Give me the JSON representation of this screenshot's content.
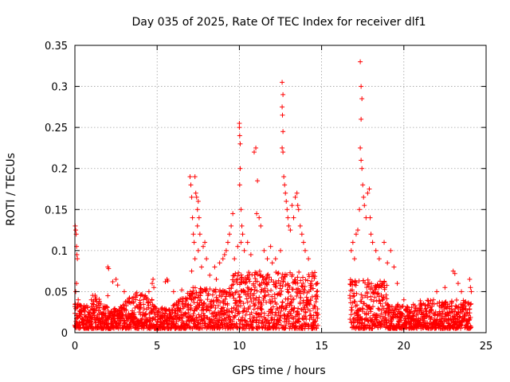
{
  "chart_data": {
    "type": "scatter",
    "title": "Day 035 of 2025, Rate Of TEC Index for receiver dlf1",
    "xlabel": "GPS time / hours",
    "ylabel": "ROTI / TECUs",
    "xlim": [
      0,
      25
    ],
    "ylim": [
      0,
      0.35
    ],
    "x_ticks": [
      0,
      5,
      10,
      15,
      20,
      25
    ],
    "y_ticks": [
      0,
      0.05,
      0.1,
      0.15,
      0.2,
      0.25,
      0.3,
      0.35
    ],
    "x_tick_labels": [
      "0",
      "5",
      "10",
      "15",
      "20",
      "25"
    ],
    "y_tick_labels": [
      "0",
      "0.05",
      "0.1",
      "0.15",
      "0.2",
      "0.25",
      "0.3",
      "0.35"
    ],
    "grid": true,
    "marker": "+",
    "marker_color": "#ff0000",
    "data_gap_hours": [
      14.8,
      16.7
    ],
    "series": [
      {
        "name": "ROTI",
        "points": [
          [
            0.02,
            0.13
          ],
          [
            0.05,
            0.125
          ],
          [
            0.08,
            0.12
          ],
          [
            0.1,
            0.105
          ],
          [
            0.12,
            0.095
          ],
          [
            0.15,
            0.09
          ],
          [
            0.1,
            0.06
          ],
          [
            0.05,
            0.05
          ],
          [
            0.2,
            0.04
          ],
          [
            0.03,
            0.035
          ],
          [
            1.0,
            0.04
          ],
          [
            1.5,
            0.038
          ],
          [
            2.0,
            0.045
          ],
          [
            2.0,
            0.08
          ],
          [
            2.05,
            0.078
          ],
          [
            2.3,
            0.062
          ],
          [
            2.5,
            0.065
          ],
          [
            2.6,
            0.058
          ],
          [
            3.0,
            0.05
          ],
          [
            3.5,
            0.042
          ],
          [
            4.0,
            0.045
          ],
          [
            4.5,
            0.05
          ],
          [
            4.7,
            0.06
          ],
          [
            4.75,
            0.065
          ],
          [
            4.8,
            0.055
          ],
          [
            5.5,
            0.062
          ],
          [
            5.6,
            0.065
          ],
          [
            5.65,
            0.063
          ],
          [
            6.0,
            0.05
          ],
          [
            6.5,
            0.052
          ],
          [
            7.0,
            0.19
          ],
          [
            7.05,
            0.18
          ],
          [
            7.1,
            0.165
          ],
          [
            7.15,
            0.14
          ],
          [
            7.2,
            0.12
          ],
          [
            7.25,
            0.11
          ],
          [
            7.3,
            0.09
          ],
          [
            7.1,
            0.075
          ],
          [
            7.3,
            0.19
          ],
          [
            7.35,
            0.17
          ],
          [
            7.4,
            0.165
          ],
          [
            7.45,
            0.15
          ],
          [
            7.5,
            0.16
          ],
          [
            7.55,
            0.14
          ],
          [
            7.45,
            0.13
          ],
          [
            7.6,
            0.12
          ],
          [
            7.5,
            0.1
          ],
          [
            7.7,
            0.08
          ],
          [
            7.8,
            0.105
          ],
          [
            7.9,
            0.11
          ],
          [
            8.0,
            0.09
          ],
          [
            8.2,
            0.07
          ],
          [
            8.5,
            0.08
          ],
          [
            8.6,
            0.065
          ],
          [
            8.8,
            0.085
          ],
          [
            9.0,
            0.09
          ],
          [
            9.1,
            0.095
          ],
          [
            9.2,
            0.1
          ],
          [
            9.3,
            0.11
          ],
          [
            9.4,
            0.12
          ],
          [
            9.5,
            0.13
          ],
          [
            9.6,
            0.145
          ],
          [
            9.7,
            0.09
          ],
          [
            9.9,
            0.105
          ],
          [
            10.0,
            0.255
          ],
          [
            10.0,
            0.25
          ],
          [
            10.02,
            0.24
          ],
          [
            10.05,
            0.23
          ],
          [
            10.05,
            0.2
          ],
          [
            10.02,
            0.18
          ],
          [
            10.1,
            0.15
          ],
          [
            10.15,
            0.13
          ],
          [
            10.2,
            0.12
          ],
          [
            10.1,
            0.11
          ],
          [
            10.3,
            0.1
          ],
          [
            10.5,
            0.11
          ],
          [
            10.7,
            0.095
          ],
          [
            10.9,
            0.22
          ],
          [
            11.0,
            0.225
          ],
          [
            11.1,
            0.185
          ],
          [
            11.05,
            0.145
          ],
          [
            11.2,
            0.14
          ],
          [
            11.3,
            0.13
          ],
          [
            11.5,
            0.1
          ],
          [
            11.7,
            0.09
          ],
          [
            11.9,
            0.105
          ],
          [
            12.0,
            0.085
          ],
          [
            12.2,
            0.09
          ],
          [
            12.5,
            0.1
          ],
          [
            12.6,
            0.305
          ],
          [
            12.65,
            0.29
          ],
          [
            12.6,
            0.275
          ],
          [
            12.62,
            0.265
          ],
          [
            12.65,
            0.245
          ],
          [
            12.6,
            0.225
          ],
          [
            12.65,
            0.22
          ],
          [
            12.7,
            0.19
          ],
          [
            12.75,
            0.18
          ],
          [
            12.8,
            0.17
          ],
          [
            12.85,
            0.16
          ],
          [
            12.9,
            0.15
          ],
          [
            12.95,
            0.14
          ],
          [
            13.0,
            0.13
          ],
          [
            13.1,
            0.125
          ],
          [
            13.2,
            0.155
          ],
          [
            13.3,
            0.14
          ],
          [
            13.4,
            0.165
          ],
          [
            13.5,
            0.17
          ],
          [
            13.55,
            0.155
          ],
          [
            13.6,
            0.15
          ],
          [
            13.7,
            0.13
          ],
          [
            13.8,
            0.12
          ],
          [
            13.9,
            0.11
          ],
          [
            14.0,
            0.1
          ],
          [
            14.2,
            0.09
          ],
          [
            14.5,
            0.07
          ],
          [
            14.7,
            0.05
          ],
          [
            16.8,
            0.1
          ],
          [
            16.9,
            0.11
          ],
          [
            17.0,
            0.09
          ],
          [
            17.1,
            0.12
          ],
          [
            17.2,
            0.125
          ],
          [
            17.3,
            0.15
          ],
          [
            17.35,
            0.33
          ],
          [
            17.4,
            0.3
          ],
          [
            17.45,
            0.285
          ],
          [
            17.4,
            0.26
          ],
          [
            17.35,
            0.225
          ],
          [
            17.4,
            0.21
          ],
          [
            17.45,
            0.2
          ],
          [
            17.5,
            0.18
          ],
          [
            17.55,
            0.165
          ],
          [
            17.6,
            0.155
          ],
          [
            17.7,
            0.14
          ],
          [
            17.8,
            0.17
          ],
          [
            17.9,
            0.175
          ],
          [
            17.95,
            0.14
          ],
          [
            18.0,
            0.12
          ],
          [
            18.1,
            0.11
          ],
          [
            18.3,
            0.1
          ],
          [
            18.5,
            0.09
          ],
          [
            18.8,
            0.11
          ],
          [
            19.0,
            0.085
          ],
          [
            19.2,
            0.1
          ],
          [
            19.4,
            0.08
          ],
          [
            19.6,
            0.06
          ],
          [
            20.0,
            0.04
          ],
          [
            21.0,
            0.03
          ],
          [
            21.8,
            0.04
          ],
          [
            22.0,
            0.05
          ],
          [
            22.5,
            0.055
          ],
          [
            23.0,
            0.075
          ],
          [
            23.1,
            0.072
          ],
          [
            23.3,
            0.06
          ],
          [
            23.5,
            0.05
          ],
          [
            24.0,
            0.065
          ],
          [
            24.05,
            0.055
          ],
          [
            24.1,
            0.05
          ]
        ]
      }
    ]
  }
}
